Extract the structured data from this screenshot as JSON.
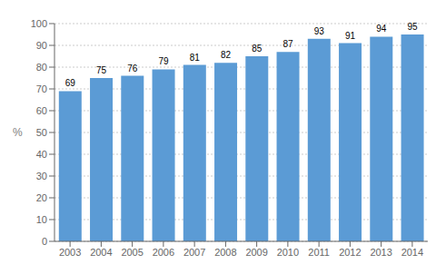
{
  "chart_data": {
    "type": "bar",
    "categories": [
      "2003",
      "2004",
      "2005",
      "2006",
      "2007",
      "2008",
      "2009",
      "2010",
      "2011",
      "2012",
      "2013",
      "2014"
    ],
    "values": [
      69,
      75,
      76,
      79,
      81,
      82,
      85,
      87,
      93,
      91,
      94,
      95
    ],
    "color": "#5B9BD5",
    "ylabel": "%",
    "ylim": [
      0,
      100
    ],
    "yticks": [
      0,
      10,
      20,
      30,
      40,
      50,
      60,
      70,
      80,
      90,
      100
    ],
    "grid": true,
    "data_labels": true
  }
}
